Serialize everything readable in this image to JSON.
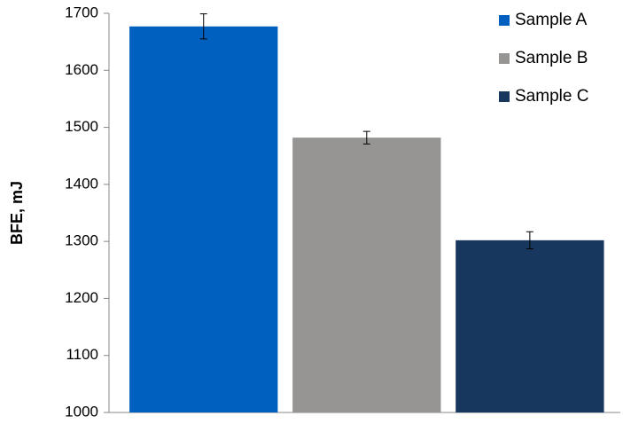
{
  "chart_data": {
    "type": "bar",
    "y_label": "BFE, mJ",
    "categories": [
      null
    ],
    "series": [
      {
        "name": "Sample A",
        "color": "#0060c0",
        "values": [
          1677
        ],
        "errors": [
          22
        ]
      },
      {
        "name": "Sample B",
        "color": "#969594",
        "values": [
          1482
        ],
        "errors": [
          11
        ]
      },
      {
        "name": "Sample C",
        "color": "#17375e",
        "values": [
          1302
        ],
        "errors": [
          15
        ]
      }
    ],
    "ylim": [
      1000,
      1700
    ],
    "yticks": [
      1000,
      1100,
      1200,
      1300,
      1400,
      1500,
      1600,
      1700
    ],
    "grid": false,
    "legend": "top-right"
  }
}
